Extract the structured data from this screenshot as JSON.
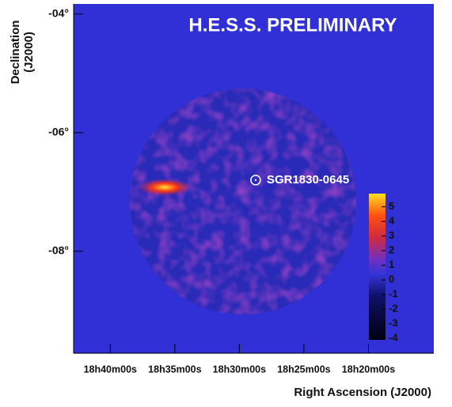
{
  "chart_data": {
    "type": "skymap",
    "title": "H.E.S.S. PRELIMINARY",
    "xlabel": "Right Ascension (J2000)",
    "ylabel": [
      "Declination",
      "(J2000)"
    ],
    "xlim": [
      18.714,
      18.249
    ],
    "xticks": [
      {
        "value": 18.6667,
        "label": "18h40m00s"
      },
      {
        "value": 18.5833,
        "label": "18h35m00s"
      },
      {
        "value": 18.5,
        "label": "18h30m00s"
      },
      {
        "value": 18.4167,
        "label": "18h25m00s"
      },
      {
        "value": 18.3333,
        "label": "18h20m00s"
      }
    ],
    "ylim": [
      -9.72,
      -3.83
    ],
    "yticks": [
      {
        "value": -4,
        "label": "-04°"
      },
      {
        "value": -6,
        "label": "-06°"
      },
      {
        "value": -8,
        "label": "-08°"
      }
    ],
    "zlim": [
      -4.1,
      5.9
    ],
    "zticks": [
      5,
      4,
      3,
      2,
      1,
      0,
      -1,
      -2,
      -3,
      -4
    ],
    "annotation": {
      "text": "SGR1830-0645",
      "x": 18.479,
      "y": -6.8
    }
  }
}
